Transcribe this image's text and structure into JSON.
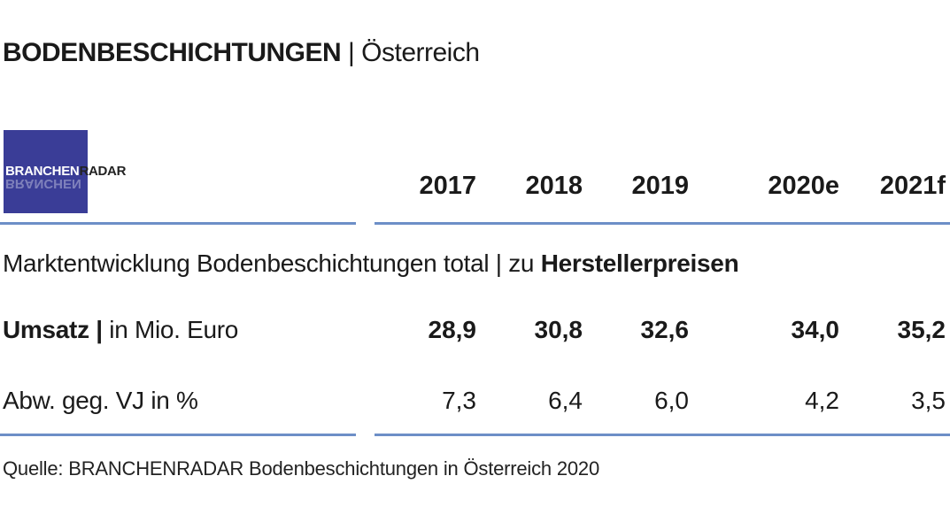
{
  "header": {
    "title_main": "BODENBESCHICHTUNGEN",
    "title_separator": " | ",
    "title_region": "Österreich"
  },
  "logo": {
    "text_part1": "BRANCHEN",
    "text_part2": "RADAR",
    "echo_text": "BRANCHEN",
    "color": "#3a3d97"
  },
  "chart_data": {
    "type": "table",
    "title": "BODENBESCHICHTUNGEN | Österreich",
    "subtitle_prefix": "Marktentwicklung Bodenbeschichtungen total | zu ",
    "subtitle_emphasis": "Herstellerpreisen",
    "columns": [
      "2017",
      "2018",
      "2019",
      "2020e",
      "2021f"
    ],
    "rows": [
      {
        "label_bold": "Umsatz |",
        "label_rest": " in Mio. Euro",
        "values": [
          "28,9",
          "30,8",
          "32,6",
          "34,0",
          "35,2"
        ]
      },
      {
        "label_bold": "",
        "label_rest": "Abw. geg. VJ in %",
        "values": [
          "7,3",
          "6,4",
          "6,0",
          "4,2",
          "3,5"
        ]
      }
    ],
    "source": "Quelle: BRANCHENRADAR Bodenbeschichtungen in Österreich 2020",
    "rule_color": "#6d8fc7"
  }
}
